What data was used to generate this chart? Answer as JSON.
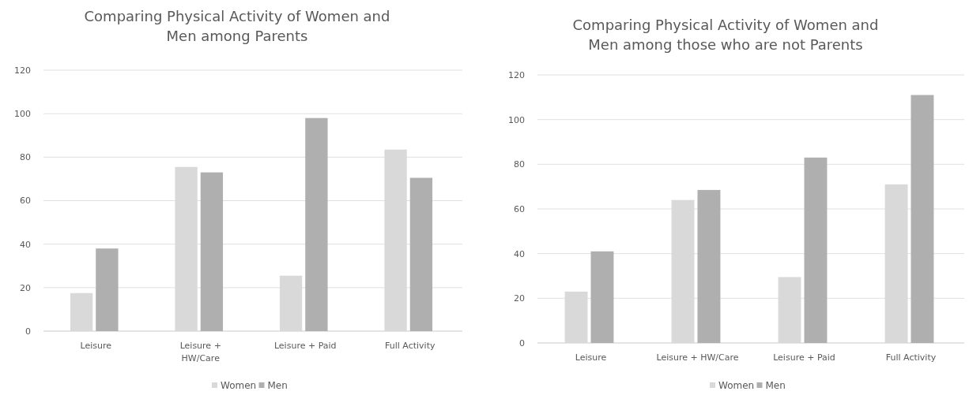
{
  "chart_data": [
    {
      "type": "bar",
      "title": "Comparing Physical Activity of Women and Men among Parents",
      "categories": [
        "Leisure",
        "Leisure + HW/Care",
        "Leisure + Paid",
        "Full Activity"
      ],
      "series": [
        {
          "name": "Women",
          "color": "#d9d9d9",
          "values": [
            17.5,
            75.5,
            25.5,
            83.5
          ]
        },
        {
          "name": "Men",
          "color": "#afafaf",
          "values": [
            38,
            73,
            98,
            70.5
          ]
        }
      ],
      "ylim": [
        0,
        120
      ],
      "yticks": [
        0,
        20,
        40,
        60,
        80,
        100,
        120
      ],
      "grid": "y",
      "legend": "bottom"
    },
    {
      "type": "bar",
      "title": "Comparing Physical Activity of Women and Men among those who are not Parents",
      "categories": [
        "Leisure",
        "Leisure + HW/Care",
        "Leisure + Paid",
        "Full Activity"
      ],
      "series": [
        {
          "name": "Women",
          "color": "#d9d9d9",
          "values": [
            23,
            64,
            29.5,
            71
          ]
        },
        {
          "name": "Men",
          "color": "#afafaf",
          "values": [
            41,
            68.5,
            83,
            111
          ]
        }
      ],
      "ylim": [
        0,
        120
      ],
      "yticks": [
        0,
        20,
        40,
        60,
        80,
        100,
        120
      ],
      "grid": "y",
      "legend": "bottom"
    }
  ]
}
